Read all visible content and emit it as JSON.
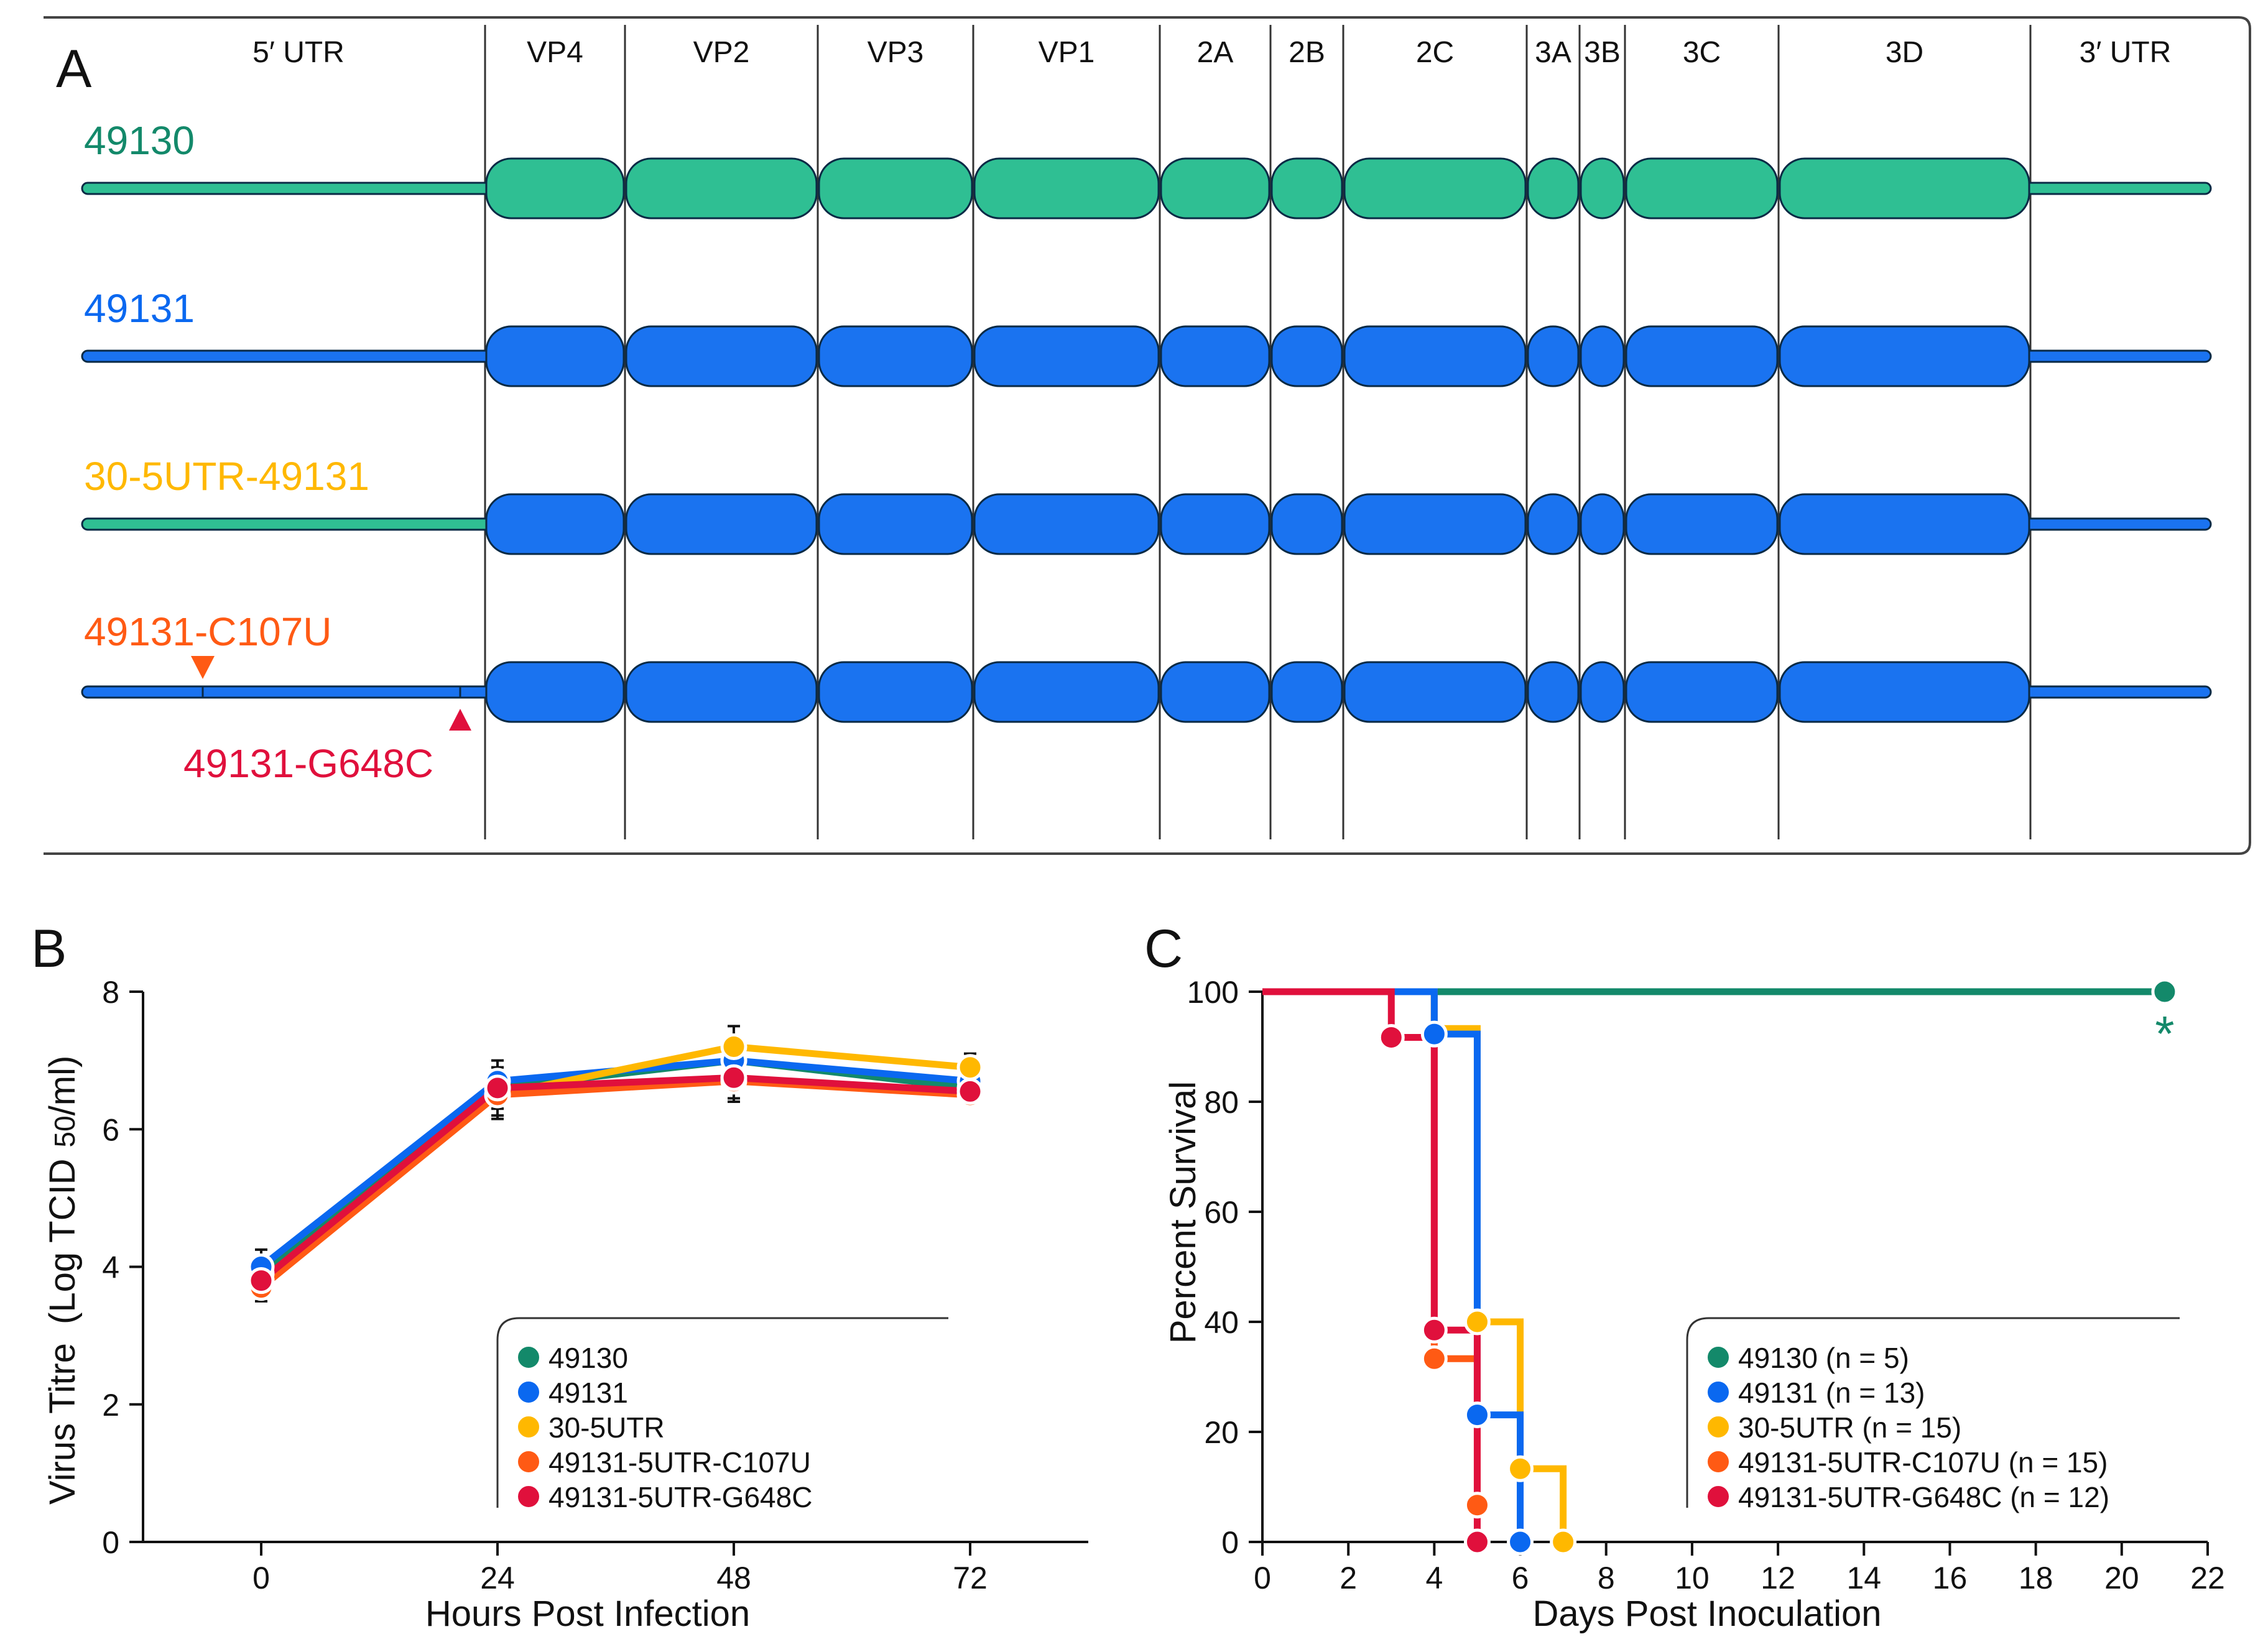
{
  "colors": {
    "c49130": "#13896a",
    "c49130_fill": "#2fbf93",
    "c49131": "#0a68f0",
    "c49131_fill": "#1a73f0",
    "c30": "#ffb800",
    "c107": "#ff5a14",
    "c648": "#e0103c",
    "black": "#111111"
  },
  "panels": {
    "a": "A",
    "b": "B",
    "c": "C"
  },
  "genome": {
    "regions": [
      "5′ UTR",
      "VP4",
      "VP2",
      "VP3",
      "VP1",
      "2A",
      "2B",
      "2C",
      "3A",
      "3B",
      "3C",
      "3D",
      "3′ UTR"
    ],
    "constructs": [
      "49130",
      "49131",
      "30-5UTR-49131",
      "49131-C107U"
    ],
    "mutation_label": "49131-G648C"
  },
  "chart_data": [
    {
      "type": "line",
      "title": "",
      "xlabel": "Hours Post Infection",
      "ylabel_main": "Virus Titre",
      "ylabel_unit": "(Log TCID",
      "ylabel_sub": "50",
      "ylabel_end": "/ml)",
      "x": [
        0,
        24,
        48,
        72
      ],
      "xticks": [
        "0",
        "24",
        "48",
        "72"
      ],
      "yticks": [
        "0",
        "2",
        "4",
        "6",
        "8"
      ],
      "xlim": [
        -12,
        84
      ],
      "ylim": [
        0,
        8
      ],
      "series": [
        {
          "name": "49130",
          "key": "c49130",
          "values": [
            3.9,
            6.6,
            7.0,
            6.6
          ],
          "err": [
            0.2,
            0.3,
            0.3,
            0.2
          ]
        },
        {
          "name": "49131",
          "key": "c49131",
          "values": [
            4.0,
            6.7,
            7.0,
            6.7
          ],
          "err": [
            0.25,
            0.3,
            0.3,
            0.2
          ]
        },
        {
          "name": "30-5UTR",
          "key": "c30",
          "values": [
            3.8,
            6.5,
            7.2,
            6.9
          ],
          "err": [
            0.2,
            0.35,
            0.3,
            0.2
          ]
        },
        {
          "name": "49131-5UTR-C107U",
          "key": "c107",
          "values": [
            3.7,
            6.5,
            6.7,
            6.5
          ],
          "err": [
            0.2,
            0.3,
            0.3,
            0.15
          ]
        },
        {
          "name": "49131-5UTR-G648C",
          "key": "c648",
          "values": [
            3.8,
            6.6,
            6.75,
            6.55
          ],
          "err": [
            0.2,
            0.3,
            0.3,
            0.15
          ]
        }
      ]
    },
    {
      "type": "line",
      "title": "",
      "xlabel": "Days Post Inoculation",
      "ylabel": "Percent Survival",
      "xticks": [
        "0",
        "2",
        "4",
        "6",
        "8",
        "10",
        "12",
        "14",
        "16",
        "18",
        "20",
        "22"
      ],
      "yticks": [
        "0",
        "20",
        "40",
        "60",
        "80",
        "100"
      ],
      "xlim": [
        0,
        22
      ],
      "ylim": [
        0,
        100
      ],
      "annotation": "*",
      "series": [
        {
          "name": "49130 (n = 5)",
          "key": "c49130",
          "x": [
            0,
            21
          ],
          "y": [
            100,
            100
          ],
          "markers": [
            [
              21,
              100
            ]
          ]
        },
        {
          "name": "49131 (n = 13)",
          "key": "c49131",
          "x": [
            0,
            4,
            4,
            5,
            5,
            6,
            6
          ],
          "y": [
            100,
            100,
            92.3,
            92.3,
            23.1,
            23.1,
            0
          ],
          "markers": [
            [
              4,
              92.3
            ],
            [
              5,
              23.1
            ],
            [
              6,
              0
            ]
          ]
        },
        {
          "name": "30-5UTR (n = 15)",
          "key": "c30",
          "x": [
            0,
            4,
            4,
            5,
            5,
            6,
            6,
            7,
            7
          ],
          "y": [
            100,
            100,
            93.3,
            93.3,
            40,
            40,
            13.3,
            13.3,
            0
          ],
          "markers": [
            [
              5,
              40
            ],
            [
              6,
              13.3
            ],
            [
              7,
              0
            ]
          ]
        },
        {
          "name": "49131-5UTR-C107U (n = 15)",
          "key": "c107",
          "x": [
            0,
            4,
            4,
            5,
            5
          ],
          "y": [
            100,
            100,
            33.3,
            33.3,
            6.7
          ],
          "markers": [
            [
              4,
              33.3
            ],
            [
              5,
              6.7
            ]
          ]
        },
        {
          "name": "49131-5UTR-G648C (n = 12)",
          "key": "c648",
          "x": [
            0,
            3,
            3,
            4,
            4,
            5,
            5
          ],
          "y": [
            100,
            100,
            91.7,
            91.7,
            38.5,
            38.5,
            0
          ],
          "markers": [
            [
              3,
              91.7
            ],
            [
              4,
              38.5
            ],
            [
              5,
              0
            ]
          ]
        }
      ]
    }
  ]
}
